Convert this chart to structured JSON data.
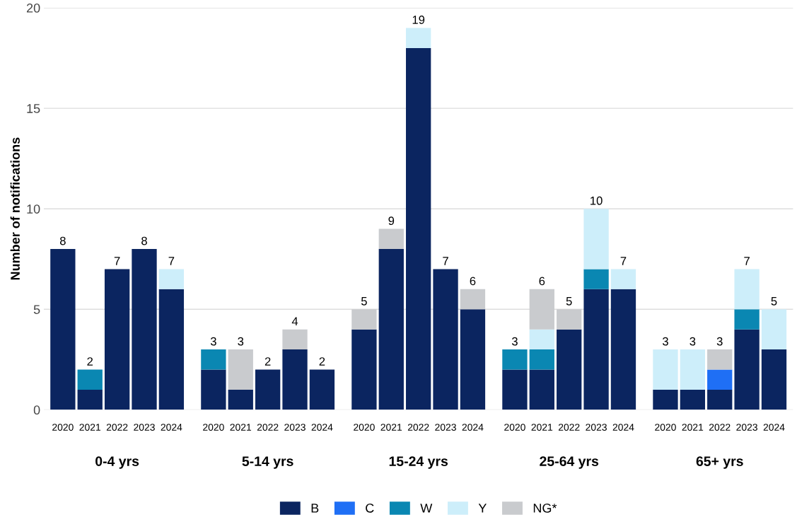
{
  "chart_data": {
    "type": "bar",
    "stacked": true,
    "ylabel": "Number of notifications",
    "categories": [
      "2020",
      "2021",
      "2022",
      "2023",
      "2024",
      "2020",
      "2021",
      "2022",
      "2023",
      "2024",
      "2020",
      "2021",
      "2022",
      "2023",
      "2024",
      "2020",
      "2021",
      "2022",
      "2023",
      "2024",
      "2020",
      "2021",
      "2022",
      "2023",
      "2024"
    ],
    "series": [
      {
        "name": "B",
        "color": "#0b2560",
        "values": [
          8,
          1,
          7,
          8,
          6,
          2,
          1,
          2,
          3,
          2,
          4,
          8,
          18,
          7,
          5,
          2,
          2,
          4,
          6,
          6,
          1,
          1,
          1,
          4,
          3
        ]
      },
      {
        "name": "C",
        "color": "#1f6ff5",
        "values": [
          null,
          null,
          null,
          null,
          null,
          null,
          null,
          null,
          null,
          null,
          null,
          null,
          null,
          null,
          null,
          null,
          null,
          null,
          null,
          null,
          null,
          null,
          1,
          null,
          null
        ]
      },
      {
        "name": "W",
        "color": "#0a87b2",
        "values": [
          null,
          1,
          null,
          null,
          null,
          1,
          null,
          null,
          null,
          null,
          null,
          null,
          null,
          null,
          null,
          1,
          1,
          null,
          1,
          null,
          null,
          null,
          null,
          1,
          null
        ]
      },
      {
        "name": "Y",
        "color": "#cdeefa",
        "values": [
          null,
          null,
          null,
          null,
          1,
          null,
          null,
          null,
          null,
          null,
          null,
          null,
          1,
          null,
          null,
          null,
          1,
          null,
          3,
          1,
          2,
          2,
          null,
          2,
          2
        ]
      },
      {
        "name": "NG*",
        "color": "#c9cbce",
        "values": [
          null,
          null,
          null,
          null,
          null,
          null,
          2,
          null,
          1,
          null,
          1,
          1,
          null,
          null,
          1,
          null,
          2,
          1,
          null,
          null,
          null,
          null,
          1,
          null,
          null
        ]
      }
    ],
    "totals": [
      "8",
      "2",
      "7",
      "8",
      "7",
      "3",
      "3",
      "2",
      "4",
      "2",
      "5",
      "9",
      "19",
      "7",
      "6",
      "3",
      "6",
      "5",
      "10",
      "7",
      "3",
      "3",
      "3",
      "7",
      "5"
    ],
    "annotations": [
      "0-4 yrs",
      "5-14 yrs",
      "15-24 yrs",
      "25-64 yrs",
      "65+ yrs"
    ],
    "ylim": [
      0,
      20
    ],
    "yticks": [
      0,
      5,
      10,
      15,
      20
    ],
    "grid": "y",
    "legend": "bottom"
  }
}
